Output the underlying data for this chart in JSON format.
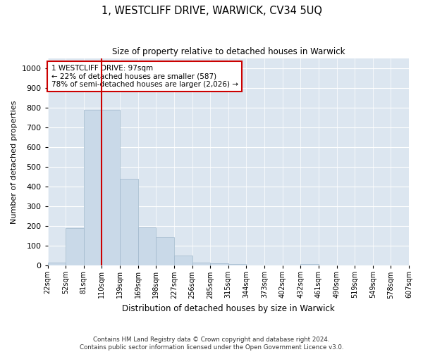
{
  "title": "1, WESTCLIFF DRIVE, WARWICK, CV34 5UQ",
  "subtitle": "Size of property relative to detached houses in Warwick",
  "xlabel": "Distribution of detached houses by size in Warwick",
  "ylabel": "Number of detached properties",
  "bar_values": [
    15,
    190,
    790,
    790,
    440,
    195,
    145,
    50,
    15,
    10,
    8,
    0,
    0,
    0,
    8,
    0,
    0,
    0,
    0,
    0
  ],
  "bar_labels": [
    "22sqm",
    "52sqm",
    "81sqm",
    "110sqm",
    "139sqm",
    "169sqm",
    "198sqm",
    "227sqm",
    "256sqm",
    "285sqm",
    "315sqm",
    "344sqm",
    "373sqm",
    "402sqm",
    "432sqm",
    "461sqm",
    "490sqm",
    "519sqm",
    "549sqm",
    "578sqm",
    "607sqm"
  ],
  "bar_color": "#c9d9e8",
  "bar_edge_color": "#a0b8cc",
  "vline_color": "#cc0000",
  "annotation_text": "1 WESTCLIFF DRIVE: 97sqm\n← 22% of detached houses are smaller (587)\n78% of semi-detached houses are larger (2,026) →",
  "annotation_box_color": "#ffffff",
  "annotation_box_edge": "#cc0000",
  "ylim": [
    0,
    1050
  ],
  "yticks": [
    0,
    100,
    200,
    300,
    400,
    500,
    600,
    700,
    800,
    900,
    1000
  ],
  "bg_color": "#dce6f0",
  "footer_line1": "Contains HM Land Registry data © Crown copyright and database right 2024.",
  "footer_line2": "Contains public sector information licensed under the Open Government Licence v3.0."
}
